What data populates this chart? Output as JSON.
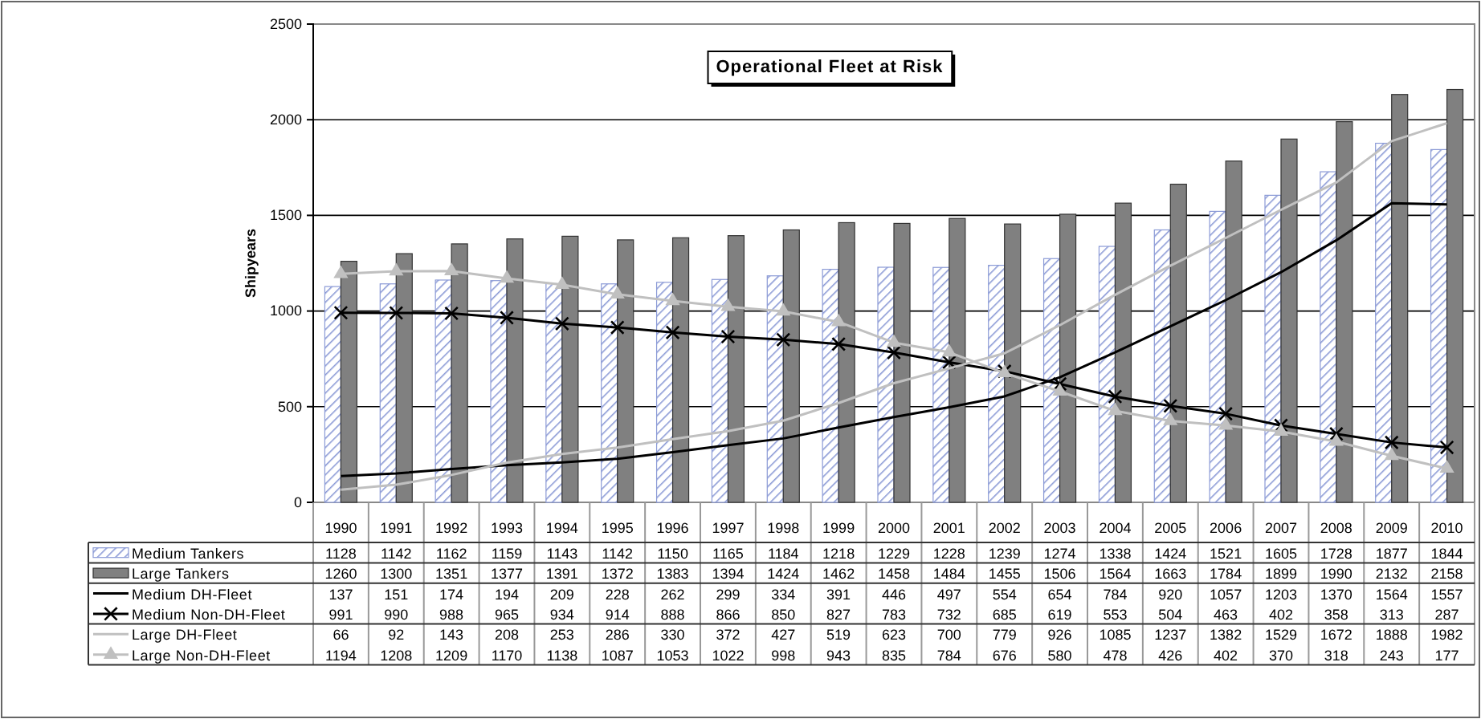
{
  "chart_data": {
    "type": "bar",
    "title": "Operational Fleet at Risk",
    "ylabel": "Shipyears",
    "categories": [
      "1990",
      "1991",
      "1992",
      "1993",
      "1994",
      "1995",
      "1996",
      "1997",
      "1998",
      "1999",
      "2000",
      "2001",
      "2002",
      "2003",
      "2004",
      "2005",
      "2006",
      "2007",
      "2008",
      "2009",
      "2010"
    ],
    "ylim": [
      0,
      2500
    ],
    "yticks": [
      0,
      500,
      1000,
      1500,
      2000,
      2500
    ],
    "grid": "y",
    "legend": "bottom",
    "data_labels": true,
    "series": [
      {
        "name": "Medium Tankers",
        "color": "#8b9ad6",
        "values": [
          1128,
          1142,
          1162,
          1159,
          1143,
          1142,
          1150,
          1165,
          1184,
          1218,
          1229,
          1228,
          1239,
          1274,
          1338,
          1424,
          1521,
          1605,
          1728,
          1877,
          1844
        ]
      },
      {
        "name": "Large Tankers",
        "color": "#808080",
        "values": [
          1260,
          1300,
          1351,
          1377,
          1391,
          1372,
          1383,
          1394,
          1424,
          1462,
          1458,
          1484,
          1455,
          1506,
          1564,
          1663,
          1784,
          1899,
          1990,
          2132,
          2158
        ]
      },
      {
        "name": "Medium DH-Fleet",
        "type": "line",
        "color": "#000000",
        "marker": "none",
        "values": [
          137,
          151,
          174,
          194,
          209,
          228,
          262,
          299,
          334,
          391,
          446,
          497,
          554,
          654,
          784,
          920,
          1057,
          1203,
          1370,
          1564,
          1557
        ]
      },
      {
        "name": "Medium Non-DH-Fleet",
        "type": "line",
        "color": "#000000",
        "marker": "cross",
        "values": [
          991,
          990,
          988,
          965,
          934,
          914,
          888,
          866,
          850,
          827,
          783,
          732,
          685,
          619,
          553,
          504,
          463,
          402,
          358,
          313,
          287
        ]
      },
      {
        "name": "Large DH-Fleet",
        "type": "line",
        "color": "#c0c0c0",
        "marker": "none",
        "values": [
          66,
          92,
          143,
          208,
          253,
          286,
          330,
          372,
          427,
          519,
          623,
          700,
          779,
          926,
          1085,
          1237,
          1382,
          1529,
          1672,
          1888,
          1982
        ]
      },
      {
        "name": "Large Non-DH-Fleet",
        "type": "line",
        "color": "#c0c0c0",
        "marker": "triangle",
        "values": [
          1194,
          1208,
          1209,
          1170,
          1138,
          1087,
          1053,
          1022,
          998,
          943,
          835,
          784,
          676,
          580,
          478,
          426,
          402,
          370,
          318,
          243,
          177
        ]
      }
    ]
  }
}
